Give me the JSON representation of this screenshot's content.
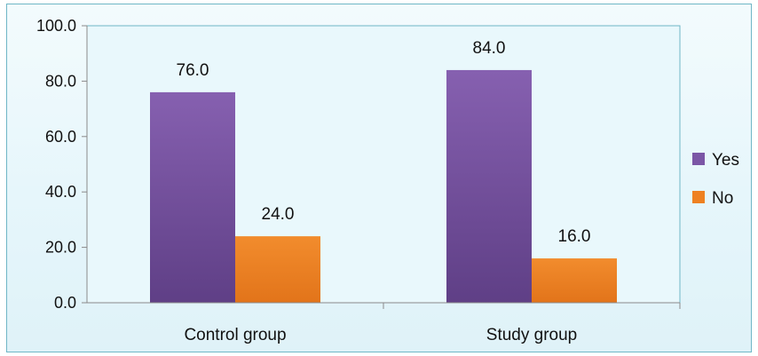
{
  "chart_data": {
    "type": "bar",
    "title": "",
    "xlabel": "",
    "ylabel": "",
    "categories": [
      "Control group",
      "Study group"
    ],
    "series": [
      {
        "name": "Yes",
        "values": [
          76.0,
          84.0
        ],
        "color": "#7b56a6"
      },
      {
        "name": "No",
        "values": [
          24.0,
          16.0
        ],
        "color": "#ee8121"
      }
    ],
    "ylim": [
      0,
      100
    ],
    "yticks": [
      "0.0",
      "20.0",
      "40.0",
      "60.0",
      "80.0",
      "100.0"
    ],
    "data_labels": [
      [
        "76.0",
        "84.0"
      ],
      [
        "24.0",
        "16.0"
      ]
    ],
    "grid": false,
    "legend_position": "right",
    "plot_background": "#e9f8fc",
    "frame_color": "#6fb6c6"
  }
}
